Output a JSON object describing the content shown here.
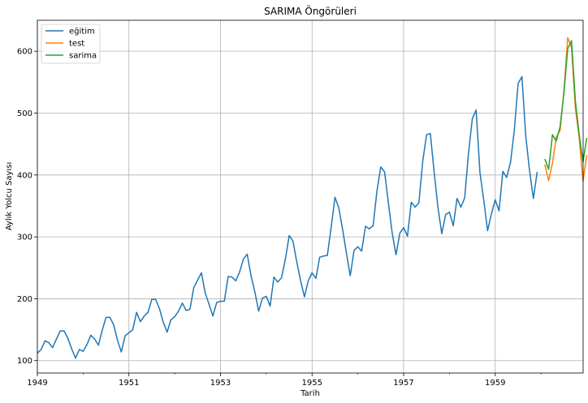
{
  "chart_data": {
    "type": "line",
    "title": "SARIMA Öngörüleri",
    "xlabel": "Tarih",
    "ylabel": "Aylık Yolcu Sayısı",
    "xlim": [
      1949,
      1960.92
    ],
    "ylim": [
      80,
      650
    ],
    "x_ticks": [
      1949,
      1951,
      1953,
      1955,
      1957,
      1959
    ],
    "y_ticks": [
      100,
      200,
      300,
      400,
      500,
      600
    ],
    "grid": true,
    "legend_position": "top-left",
    "series": [
      {
        "name": "eğitim",
        "color": "#1f77b4",
        "start": 1949,
        "step": 0.0833333,
        "values": [
          112,
          118,
          132,
          129,
          121,
          135,
          148,
          148,
          136,
          119,
          104,
          118,
          115,
          126,
          141,
          135,
          125,
          149,
          170,
          170,
          158,
          133,
          114,
          140,
          145,
          150,
          178,
          163,
          172,
          178,
          199,
          199,
          184,
          162,
          146,
          166,
          171,
          180,
          193,
          181,
          183,
          218,
          230,
          242,
          209,
          191,
          172,
          194,
          196,
          196,
          236,
          235,
          229,
          243,
          264,
          272,
          237,
          211,
          180,
          201,
          204,
          188,
          235,
          227,
          234,
          264,
          302,
          293,
          259,
          229,
          203,
          229,
          242,
          233,
          267,
          269,
          270,
          315,
          364,
          347,
          312,
          274,
          237,
          278,
          284,
          277,
          317,
          313,
          318,
          374,
          413,
          405,
          355,
          306,
          271,
          306,
          315,
          301,
          356,
          348,
          355,
          422,
          465,
          467,
          404,
          347,
          305,
          336,
          340,
          318,
          362,
          348,
          363,
          435,
          491,
          505,
          404,
          359,
          310,
          337,
          360,
          342,
          406,
          396,
          420,
          472,
          548,
          559,
          463,
          407,
          362,
          405
        ]
      },
      {
        "name": "test",
        "color": "#ff7f0e",
        "start": 1960.0833,
        "step": 0.0833333,
        "values": [
          417,
          391,
          419,
          461,
          472,
          535,
          622,
          606,
          508,
          461,
          390,
          432
        ]
      },
      {
        "name": "sarima",
        "color": "#2ca02c",
        "start": 1960.0833,
        "step": 0.0833333,
        "values": [
          426,
          409,
          465,
          455,
          478,
          532,
          604,
          617,
          520,
          466,
          421,
          460
        ]
      }
    ]
  }
}
